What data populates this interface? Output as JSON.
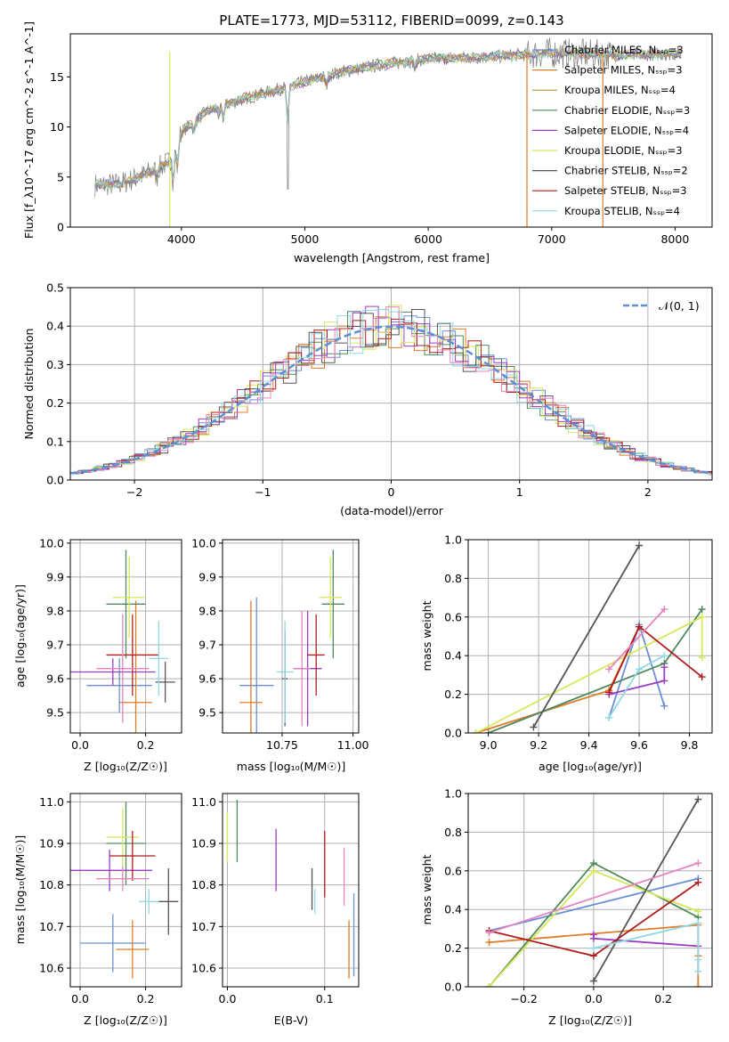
{
  "colors": {
    "chabrier_miles": "#6b8fd6",
    "salpeter_miles": "#e07b28",
    "kroupa_miles": "#b09a2a",
    "chabrier_elodie": "#4f8a5a",
    "salpeter_elodie": "#9d3cc2",
    "kroupa_elodie": "#d6e85a",
    "chabrier_stelib": "#555555",
    "salpeter_stelib": "#b01c1c",
    "kroupa_stelib": "#8fd8e6",
    "pink": "#e584bf",
    "gauss": "#5b8fd6"
  },
  "chart_data": [
    {
      "id": "spectrum",
      "type": "line",
      "title": "PLATE=1773, MJD=53112, FIBERID=0099, z=0.143",
      "xlabel": "wavelength [Angstrom, rest frame]",
      "ylabel": "Flux [f_λ10^-17 erg cm^-2 s^-1 A^-1]",
      "xlim": [
        3100,
        8300
      ],
      "ylim": [
        0,
        19.3
      ],
      "xticks": [
        4000,
        5000,
        6000,
        7000,
        8000
      ],
      "yticks": [
        0,
        5,
        10,
        15
      ],
      "grid": false,
      "legend_position": "top-right",
      "continuum": {
        "x": [
          3300,
          3500,
          3700,
          3900,
          4000,
          4200,
          4500,
          4800,
          5000,
          5300,
          5600,
          6000,
          6500,
          7000,
          7500,
          8000
        ],
        "y": [
          4.2,
          4.3,
          5.2,
          6.5,
          9.5,
          11.5,
          12.8,
          13.8,
          14.5,
          15.5,
          16.2,
          16.8,
          17.0,
          17.4,
          17.2,
          17.3
        ]
      },
      "legend": [
        "Chabrier MILES, N_SSP=3",
        "Salpeter MILES, N_SSP=3",
        "Kroupa MILES, N_SSP=4",
        "Chabrier ELODIE, N_SSP=3",
        "Salpeter ELODIE, N_SSP=4",
        "Kroupa ELODIE, N_SSP=3",
        "Chabrier STELIB, N_SSP=2",
        "Salpeter STELIB, N_SSP=3",
        "Kroupa STELIB, N_SSP=4"
      ]
    },
    {
      "id": "residuals",
      "type": "line",
      "xlabel": "(data-model)/error",
      "ylabel": "Normed distribution",
      "xlim": [
        -2.5,
        2.5
      ],
      "ylim": [
        0,
        0.5
      ],
      "xticks": [
        -2,
        -1,
        0,
        1,
        2
      ],
      "yticks": [
        0.0,
        0.1,
        0.2,
        0.3,
        0.4,
        0.5
      ],
      "grid": true,
      "legend_position": "top-right",
      "gaussian_label": "𝒩(0, 1)",
      "hist_bins_width": 0.1
    },
    {
      "id": "age_vs_Z",
      "type": "scatter",
      "xlabel": "Z [log10(Z/Z☉)]",
      "ylabel": "age [log10(age/yr)]",
      "xlim": [
        -0.03,
        0.31
      ],
      "ylim": [
        9.44,
        10.01
      ],
      "xticks": [
        0.0,
        0.2
      ],
      "yticks": [
        9.5,
        9.6,
        9.7,
        9.8,
        9.9,
        10.0
      ],
      "grid": true,
      "points": [
        {
          "c": "chabrier_miles",
          "x": 0.12,
          "xe": 0.1,
          "y": 9.58,
          "ye": 0.08
        },
        {
          "c": "salpeter_miles",
          "x": 0.17,
          "xe": 0.05,
          "y": 9.53,
          "ye": 0.3
        },
        {
          "c": "chabrier_elodie",
          "x": 0.14,
          "xe": 0.06,
          "y": 9.82,
          "ye": 0.16
        },
        {
          "c": "salpeter_elodie",
          "x": 0.1,
          "xe": 0.13,
          "y": 9.62,
          "ye": 0.04
        },
        {
          "c": "kroupa_elodie",
          "x": 0.15,
          "xe": 0.05,
          "y": 9.84,
          "ye": 0.12
        },
        {
          "c": "chabrier_stelib",
          "x": 0.26,
          "xe": 0.03,
          "y": 9.59,
          "ye": 0.06
        },
        {
          "c": "salpeter_stelib",
          "x": 0.16,
          "xe": 0.08,
          "y": 9.67,
          "ye": 0.12
        },
        {
          "c": "kroupa_stelib",
          "x": 0.24,
          "xe": 0.03,
          "y": 9.66,
          "ye": 0.11
        },
        {
          "c": "pink",
          "x": 0.13,
          "xe": 0.08,
          "y": 9.63,
          "ye": 0.16
        }
      ]
    },
    {
      "id": "age_vs_mass",
      "type": "scatter",
      "xlabel": "mass [log10(M/M☉)]",
      "xlim": [
        10.54,
        11.02
      ],
      "ylim": [
        9.44,
        10.01
      ],
      "xticks": [
        10.75,
        11.0
      ],
      "yticks": [
        9.5,
        9.6,
        9.7,
        9.8,
        9.9,
        10.0
      ],
      "grid": true,
      "points": [
        {
          "c": "chabrier_miles",
          "x": 10.66,
          "xe": 0.06,
          "y": 9.58,
          "ye": 0.26
        },
        {
          "c": "salpeter_miles",
          "x": 10.64,
          "xe": 0.04,
          "y": 9.53,
          "ye": 0.3
        },
        {
          "c": "chabrier_elodie",
          "x": 10.93,
          "xe": 0.04,
          "y": 9.82,
          "ye": 0.16
        },
        {
          "c": "salpeter_elodie",
          "x": 10.84,
          "xe": 0.05,
          "y": 9.63,
          "ye": 0.17
        },
        {
          "c": "kroupa_elodie",
          "x": 10.92,
          "xe": 0.04,
          "y": 9.84,
          "ye": 0.12
        },
        {
          "c": "chabrier_stelib",
          "x": 10.76,
          "xe": 0.01,
          "y": 9.6,
          "ye": 0.14
        },
        {
          "c": "salpeter_stelib",
          "x": 10.87,
          "xe": 0.03,
          "y": 9.67,
          "ye": 0.12
        },
        {
          "c": "kroupa_stelib",
          "x": 10.76,
          "xe": 0.03,
          "y": 9.62,
          "ye": 0.15
        },
        {
          "c": "pink",
          "x": 10.82,
          "xe": 0.03,
          "y": 9.63,
          "ye": 0.17
        }
      ]
    },
    {
      "id": "weight_vs_age",
      "type": "line",
      "xlabel": "age [log10(age/yr)]",
      "ylabel": "mass weight",
      "xlim": [
        8.92,
        9.89
      ],
      "ylim": [
        0,
        1
      ],
      "xticks": [
        9.0,
        9.2,
        9.4,
        9.6,
        9.8
      ],
      "yticks": [
        0.0,
        0.2,
        0.4,
        0.6,
        0.8,
        1.0
      ],
      "grid": true,
      "series": [
        {
          "c": "chabrier_miles",
          "x": [
            9.48,
            9.6,
            9.7
          ],
          "y": [
            0.08,
            0.56,
            0.14
          ]
        },
        {
          "c": "salpeter_miles",
          "x": [
            8.95,
            9.48,
            9.6
          ],
          "y": [
            0.0,
            0.22,
            0.55
          ]
        },
        {
          "c": "chabrier_elodie",
          "x": [
            9.0,
            9.7,
            9.85
          ],
          "y": [
            0.0,
            0.36,
            0.64
          ]
        },
        {
          "c": "salpeter_elodie",
          "x": [
            9.48,
            9.7,
            9.7
          ],
          "y": [
            0.2,
            0.27,
            0.34
          ]
        },
        {
          "c": "kroupa_elodie",
          "x": [
            8.95,
            9.85,
            9.85
          ],
          "y": [
            0.0,
            0.6,
            0.39
          ]
        },
        {
          "c": "chabrier_stelib",
          "x": [
            9.18,
            9.6
          ],
          "y": [
            0.03,
            0.97
          ]
        },
        {
          "c": "salpeter_stelib",
          "x": [
            9.48,
            9.6,
            9.85
          ],
          "y": [
            0.21,
            0.55,
            0.29
          ]
        },
        {
          "c": "kroupa_stelib",
          "x": [
            9.48,
            9.6,
            9.7
          ],
          "y": [
            0.08,
            0.33,
            0.4
          ]
        },
        {
          "c": "pink",
          "x": [
            9.48,
            9.7
          ],
          "y": [
            0.33,
            0.64
          ]
        }
      ]
    },
    {
      "id": "mass_vs_Z",
      "type": "scatter",
      "xlabel": "Z [log10(Z/Z☉)]",
      "ylabel": "mass [log10(M/M☉)]",
      "xlim": [
        -0.03,
        0.31
      ],
      "ylim": [
        10.555,
        11.02
      ],
      "xticks": [
        0.0,
        0.2
      ],
      "yticks": [
        10.6,
        10.7,
        10.8,
        10.9,
        11.0
      ],
      "grid": true,
      "points": [
        {
          "c": "chabrier_miles",
          "x": 0.1,
          "xe": 0.1,
          "y": 10.66,
          "ye": 0.07
        },
        {
          "c": "salpeter_miles",
          "x": 0.16,
          "xe": 0.05,
          "y": 10.645,
          "ye": 0.07
        },
        {
          "c": "chabrier_elodie",
          "x": 0.14,
          "xe": 0.06,
          "y": 10.9,
          "ye": 0.1
        },
        {
          "c": "salpeter_elodie",
          "x": 0.09,
          "xe": 0.13,
          "y": 10.835,
          "ye": 0.05
        },
        {
          "c": "kroupa_elodie",
          "x": 0.13,
          "xe": 0.05,
          "y": 10.915,
          "ye": 0.07
        },
        {
          "c": "chabrier_stelib",
          "x": 0.27,
          "xe": 0.03,
          "y": 10.76,
          "ye": 0.08
        },
        {
          "c": "salpeter_stelib",
          "x": 0.16,
          "xe": 0.07,
          "y": 10.87,
          "ye": 0.06
        },
        {
          "c": "kroupa_stelib",
          "x": 0.21,
          "xe": 0.03,
          "y": 10.76,
          "ye": 0.03
        },
        {
          "c": "pink",
          "x": 0.13,
          "xe": 0.08,
          "y": 10.815,
          "ye": 0.03
        }
      ]
    },
    {
      "id": "mass_vs_ebv",
      "type": "scatter",
      "xlabel": "E(B-V)",
      "xlim": [
        -0.005,
        0.135
      ],
      "ylim": [
        10.555,
        11.02
      ],
      "xticks": [
        0.0,
        0.1
      ],
      "yticks": [
        10.6,
        10.7,
        10.8,
        10.9,
        11.0
      ],
      "grid": true,
      "points": [
        {
          "c": "chabrier_miles",
          "x": 0.13,
          "y": 10.68,
          "ye": 0.1
        },
        {
          "c": "salpeter_miles",
          "x": 0.125,
          "y": 10.645,
          "ye": 0.07
        },
        {
          "c": "chabrier_elodie",
          "x": 0.01,
          "y": 10.93,
          "ye": 0.075
        },
        {
          "c": "salpeter_elodie",
          "x": 0.05,
          "y": 10.86,
          "ye": 0.075
        },
        {
          "c": "kroupa_elodie",
          "x": 0.0,
          "y": 10.915,
          "ye": 0.06
        },
        {
          "c": "chabrier_stelib",
          "x": 0.087,
          "y": 10.79,
          "ye": 0.05
        },
        {
          "c": "salpeter_stelib",
          "x": 0.1,
          "y": 10.85,
          "ye": 0.08
        },
        {
          "c": "kroupa_stelib",
          "x": 0.09,
          "y": 10.76,
          "ye": 0.03
        },
        {
          "c": "pink",
          "x": 0.12,
          "y": 10.82,
          "ye": 0.07
        }
      ]
    },
    {
      "id": "weight_vs_Z",
      "type": "line",
      "xlabel": "Z [log10(Z/Z☉)]",
      "ylabel": "mass weight",
      "xlim": [
        -0.36,
        0.34
      ],
      "ylim": [
        0,
        1
      ],
      "xticks": [
        -0.2,
        0.0,
        0.2
      ],
      "yticks": [
        0.0,
        0.2,
        0.4,
        0.6,
        0.8,
        1.0
      ],
      "grid": true,
      "series": [
        {
          "c": "chabrier_miles",
          "x": [
            -0.3,
            0.3
          ],
          "y": [
            0.29,
            0.56
          ]
        },
        {
          "c": "salpeter_miles",
          "x": [
            -0.3,
            0.3,
            0.3,
            0.3
          ],
          "y": [
            0.23,
            0.32,
            0.16,
            0.0
          ]
        },
        {
          "c": "chabrier_elodie",
          "x": [
            -0.3,
            0.0,
            0.3
          ],
          "y": [
            0.0,
            0.64,
            0.36
          ]
        },
        {
          "c": "salpeter_elodie",
          "x": [
            0.0,
            0.0,
            0.3
          ],
          "y": [
            0.27,
            0.25,
            0.21
          ]
        },
        {
          "c": "kroupa_elodie",
          "x": [
            -0.3,
            0.0,
            0.3
          ],
          "y": [
            0.0,
            0.6,
            0.39
          ]
        },
        {
          "c": "chabrier_stelib",
          "x": [
            0.0,
            0.3
          ],
          "y": [
            0.03,
            0.97
          ]
        },
        {
          "c": "salpeter_stelib",
          "x": [
            -0.3,
            0.0,
            0.3
          ],
          "y": [
            0.29,
            0.16,
            0.54
          ]
        },
        {
          "c": "kroupa_stelib",
          "x": [
            0.0,
            0.3,
            0.3,
            0.3
          ],
          "y": [
            0.2,
            0.33,
            0.14,
            0.08
          ]
        },
        {
          "c": "pink",
          "x": [
            -0.3,
            0.3
          ],
          "y": [
            0.28,
            0.64
          ]
        }
      ]
    }
  ]
}
